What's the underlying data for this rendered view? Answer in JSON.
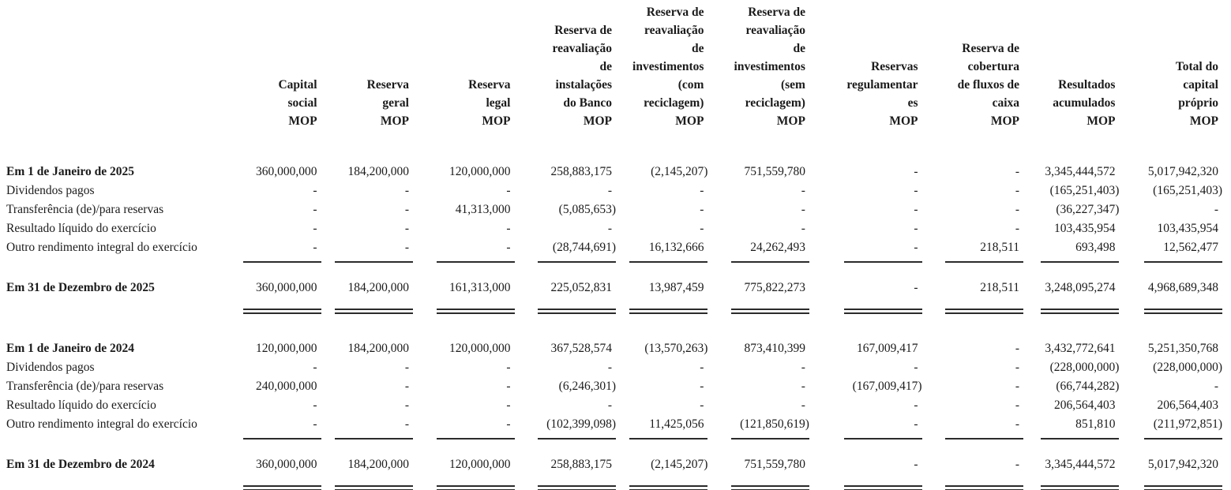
{
  "colors": {
    "background": "#ffffff",
    "text": "#1b1b1b",
    "rule": "#2b2b2b"
  },
  "table": {
    "columns": [
      {
        "id": "capital-social",
        "lines": [
          "Capital",
          "social",
          "MOP"
        ]
      },
      {
        "id": "reserva-geral",
        "lines": [
          "Reserva",
          "geral",
          "MOP"
        ]
      },
      {
        "id": "reserva-legal",
        "lines": [
          "Reserva",
          "legal",
          "MOP"
        ]
      },
      {
        "id": "reserva-reavaliacao-instalacoes-banco",
        "lines": [
          "Reserva de",
          "reavaliação",
          "de",
          "instalações",
          "do Banco",
          "MOP"
        ]
      },
      {
        "id": "reserva-reavaliacao-investimentos-com-reciclagem",
        "lines": [
          "Reserva de",
          "reavaliação",
          "de",
          "investimentos",
          "(com",
          "reciclagem)",
          "MOP"
        ]
      },
      {
        "id": "reserva-reavaliacao-investimentos-sem-reciclagem",
        "lines": [
          "Reserva de",
          "reavaliação",
          "de",
          "investimentos",
          "(sem",
          "reciclagem)",
          "MOP"
        ]
      },
      {
        "id": "reservas-regulamentares",
        "lines": [
          "Reservas",
          "regulamentar",
          "es",
          "MOP"
        ]
      },
      {
        "id": "reserva-cobertura-fluxos-caixa",
        "lines": [
          "Reserva de",
          "cobertura",
          "de fluxos de",
          "caixa",
          "MOP"
        ]
      },
      {
        "id": "resultados-acumulados",
        "lines": [
          "Resultados",
          "acumulados",
          "MOP"
        ]
      },
      {
        "id": "total-capital-proprio",
        "lines": [
          "Total do",
          "capital",
          "próprio",
          "MOP"
        ]
      }
    ],
    "sections": [
      {
        "id": "exercicio-2025",
        "rows": [
          {
            "label": "Em 1 de Janeiro de 2025",
            "bold": true,
            "values": [
              "360,000,000",
              "184,200,000",
              "120,000,000",
              "258,883,175",
              "(2,145,207)",
              "751,559,780",
              "-",
              "-",
              "3,345,444,572",
              "5,017,942,320"
            ]
          },
          {
            "label": "Dividendos pagos",
            "bold": false,
            "values": [
              "-",
              "-",
              "-",
              "-",
              "-",
              "-",
              "-",
              "-",
              "(165,251,403)",
              "(165,251,403)"
            ]
          },
          {
            "label": "Transferência (de)/para reservas",
            "bold": false,
            "values": [
              "-",
              "-",
              "41,313,000",
              "(5,085,653)",
              "-",
              "-",
              "-",
              "-",
              "(36,227,347)",
              "-"
            ]
          },
          {
            "label": "Resultado líquido do exercício",
            "bold": false,
            "values": [
              "-",
              "-",
              "-",
              "-",
              "-",
              "-",
              "-",
              "-",
              "103,435,954",
              "103,435,954"
            ]
          },
          {
            "label": "Outro rendimento integral do exercício",
            "bold": false,
            "values": [
              "-",
              "-",
              "-",
              "(28,744,691)",
              "16,132,666",
              "24,262,493",
              "-",
              "218,511",
              "693,498",
              "12,562,477"
            ]
          }
        ],
        "closing": {
          "label": "Em 31 de Dezembro de 2025",
          "bold": true,
          "values": [
            "360,000,000",
            "184,200,000",
            "161,313,000",
            "225,052,831",
            "13,987,459",
            "775,822,273",
            "-",
            "218,511",
            "3,248,095,274",
            "4,968,689,348"
          ]
        }
      },
      {
        "id": "exercicio-2024",
        "rows": [
          {
            "label": "Em 1 de Janeiro de 2024",
            "bold": true,
            "values": [
              "120,000,000",
              "184,200,000",
              "120,000,000",
              "367,528,574",
              "(13,570,263)",
              "873,410,399",
              "167,009,417",
              "-",
              "3,432,772,641",
              "5,251,350,768"
            ]
          },
          {
            "label": "Dividendos pagos",
            "bold": false,
            "values": [
              "-",
              "-",
              "-",
              "-",
              "-",
              "-",
              "-",
              "-",
              "(228,000,000)",
              "(228,000,000)"
            ]
          },
          {
            "label": "Transferência (de)/para reservas",
            "bold": false,
            "values": [
              "240,000,000",
              "-",
              "-",
              "(6,246,301)",
              "-",
              "-",
              "(167,009,417)",
              "-",
              "(66,744,282)",
              "-"
            ]
          },
          {
            "label": "Resultado líquido do exercício",
            "bold": false,
            "values": [
              "-",
              "-",
              "-",
              "-",
              "-",
              "-",
              "-",
              "-",
              "206,564,403",
              "206,564,403"
            ]
          },
          {
            "label": "Outro rendimento integral do exercício",
            "bold": false,
            "values": [
              "-",
              "-",
              "-",
              "(102,399,098)",
              "11,425,056",
              "(121,850,619)",
              "-",
              "-",
              "851,810",
              "(211,972,851)"
            ]
          }
        ],
        "closing": {
          "label": "Em 31 de Dezembro de 2024",
          "bold": true,
          "values": [
            "360,000,000",
            "184,200,000",
            "120,000,000",
            "258,883,175",
            "(2,145,207)",
            "751,559,780",
            "-",
            "-",
            "3,345,444,572",
            "5,017,942,320"
          ]
        }
      }
    ]
  }
}
